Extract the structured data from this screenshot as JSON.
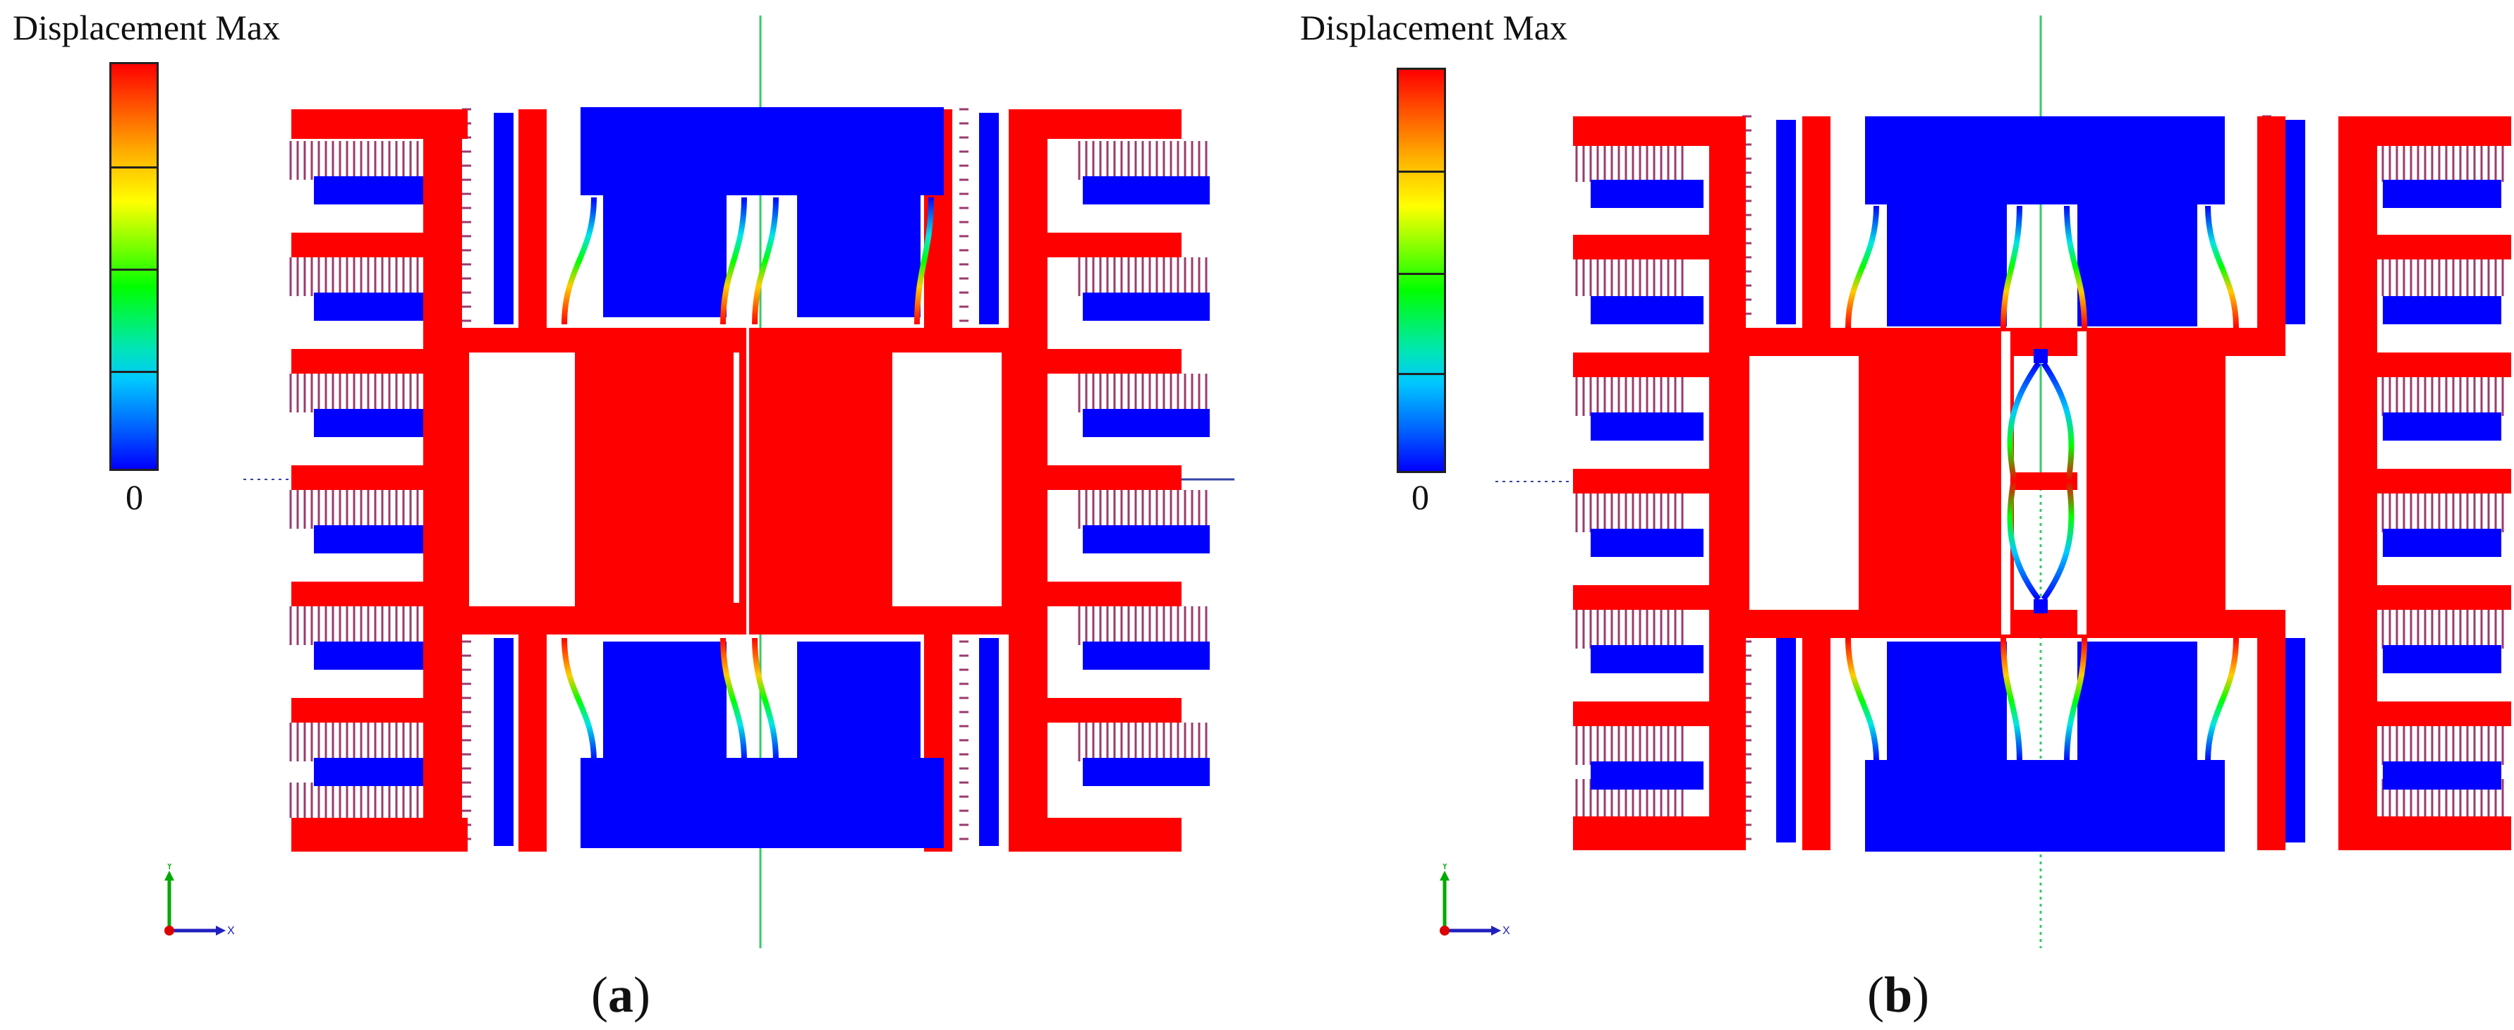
{
  "panels": [
    {
      "id": "a",
      "colorbar": {
        "title": "Displacement Max",
        "min_label": "0"
      },
      "caption": {
        "open": "(",
        "letter": "a",
        "close": ")"
      },
      "axis_triad": {
        "y_label": "Y",
        "x_label": "X"
      }
    },
    {
      "id": "b",
      "colorbar": {
        "title": "Displacement Max",
        "min_label": "0"
      },
      "caption": {
        "open": "(",
        "letter": "b",
        "close": ")"
      },
      "axis_triad": {
        "y_label": "Y",
        "x_label": "X"
      }
    }
  ],
  "colors": {
    "max_displacement": "#ff0000",
    "zero_displacement": "#0000ff",
    "finger_lines": "#9b3b6e",
    "guide_green": "#33cc66",
    "guide_blue": "#3344aa"
  }
}
